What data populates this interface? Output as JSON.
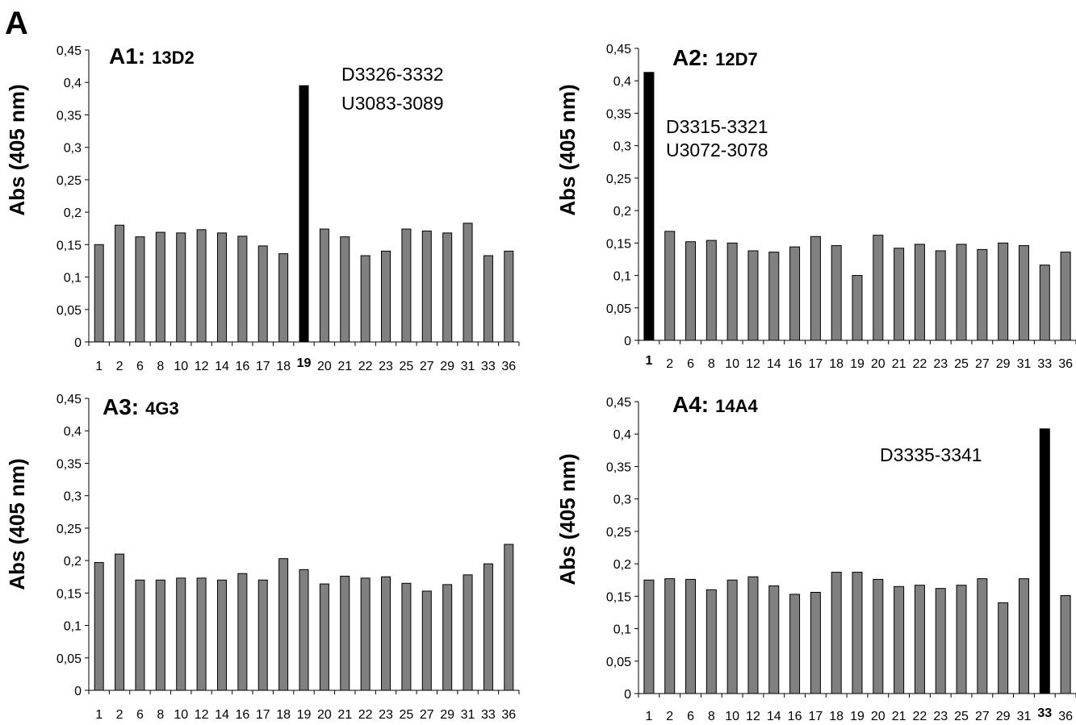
{
  "figure_label": "A",
  "chart_data": [
    {
      "type": "bar",
      "title": "A1: 13D2",
      "title_parts": [
        "A1:",
        "13D2"
      ],
      "ylabel": "Abs (405 nm)",
      "xlabel": "",
      "ylim": [
        0,
        0.45
      ],
      "yticks": [
        "0",
        "0,05",
        "0,1",
        "0,15",
        "0,2",
        "0,25",
        "0,3",
        "0,35",
        "0,4",
        "0,45"
      ],
      "categories": [
        "1",
        "2",
        "6",
        "8",
        "10",
        "12",
        "14",
        "16",
        "17",
        "18",
        "19",
        "20",
        "21",
        "22",
        "23",
        "25",
        "27",
        "29",
        "31",
        "33",
        "36"
      ],
      "values": [
        0.15,
        0.18,
        0.162,
        0.169,
        0.168,
        0.173,
        0.168,
        0.163,
        0.148,
        0.136,
        0.395,
        0.174,
        0.162,
        0.133,
        0.14,
        0.174,
        0.171,
        0.168,
        0.183,
        0.133,
        0.14
      ],
      "highlight": "19",
      "annotations": [
        "D3326-3332",
        "U3083-3089"
      ],
      "grid": false,
      "colors": {
        "bar": "#808080",
        "highlight": "#000000"
      }
    },
    {
      "type": "bar",
      "title": "A2: 12D7",
      "title_parts": [
        "A2:",
        "12D7"
      ],
      "ylabel": "Abs (405 nm)",
      "xlabel": "",
      "ylim": [
        0,
        0.45
      ],
      "yticks": [
        "0",
        "0,05",
        "0,1",
        "0,15",
        "0,2",
        "0,25",
        "0,3",
        "0,35",
        "0,4",
        "0,45"
      ],
      "categories": [
        "1",
        "2",
        "6",
        "8",
        "10",
        "12",
        "14",
        "16",
        "17",
        "18",
        "19",
        "20",
        "21",
        "22",
        "23",
        "25",
        "27",
        "29",
        "31",
        "33",
        "36"
      ],
      "values": [
        0.413,
        0.168,
        0.152,
        0.154,
        0.15,
        0.138,
        0.136,
        0.144,
        0.16,
        0.146,
        0.1,
        0.162,
        0.142,
        0.148,
        0.138,
        0.148,
        0.14,
        0.15,
        0.146,
        0.116,
        0.136
      ],
      "highlight": "1",
      "annotations": [
        "D3315-3321",
        "U3072-3078"
      ],
      "grid": false,
      "colors": {
        "bar": "#808080",
        "highlight": "#000000"
      }
    },
    {
      "type": "bar",
      "title": "A3: 4G3",
      "title_parts": [
        "A3:",
        "4G3"
      ],
      "ylabel": "Abs (405 nm)",
      "xlabel": "",
      "ylim": [
        0,
        0.45
      ],
      "yticks": [
        "0",
        "0,05",
        "0,1",
        "0,15",
        "0,2",
        "0,25",
        "0,3",
        "0,35",
        "0,4",
        "0,45"
      ],
      "categories": [
        "1",
        "2",
        "6",
        "8",
        "10",
        "12",
        "14",
        "16",
        "17",
        "18",
        "19",
        "20",
        "21",
        "22",
        "23",
        "25",
        "27",
        "29",
        "31",
        "33",
        "36"
      ],
      "values": [
        0.197,
        0.21,
        0.17,
        0.17,
        0.173,
        0.173,
        0.17,
        0.18,
        0.17,
        0.203,
        0.186,
        0.164,
        0.176,
        0.173,
        0.175,
        0.165,
        0.153,
        0.163,
        0.178,
        0.195,
        0.225
      ],
      "highlight": "",
      "annotations": [],
      "grid": false,
      "colors": {
        "bar": "#808080",
        "highlight": "#000000"
      }
    },
    {
      "type": "bar",
      "title": "A4: 14A4",
      "title_parts": [
        "A4:",
        "14A4"
      ],
      "ylabel": "Abs (405 nm)",
      "xlabel": "",
      "ylim": [
        0,
        0.45
      ],
      "yticks": [
        "0",
        "0,05",
        "0,1",
        "0,15",
        "0,2",
        "0,25",
        "0,3",
        "0,35",
        "0,4",
        "0,45"
      ],
      "categories": [
        "1",
        "2",
        "6",
        "8",
        "10",
        "12",
        "14",
        "16",
        "17",
        "18",
        "19",
        "20",
        "21",
        "22",
        "23",
        "25",
        "27",
        "29",
        "31",
        "33",
        "36"
      ],
      "values": [
        0.175,
        0.177,
        0.176,
        0.16,
        0.175,
        0.18,
        0.166,
        0.153,
        0.156,
        0.187,
        0.187,
        0.176,
        0.165,
        0.167,
        0.162,
        0.167,
        0.177,
        0.14,
        0.177,
        0.408,
        0.151
      ],
      "highlight": "33",
      "annotations": [
        "D3335-3341"
      ],
      "grid": false,
      "colors": {
        "bar": "#808080",
        "highlight": "#000000"
      }
    }
  ]
}
